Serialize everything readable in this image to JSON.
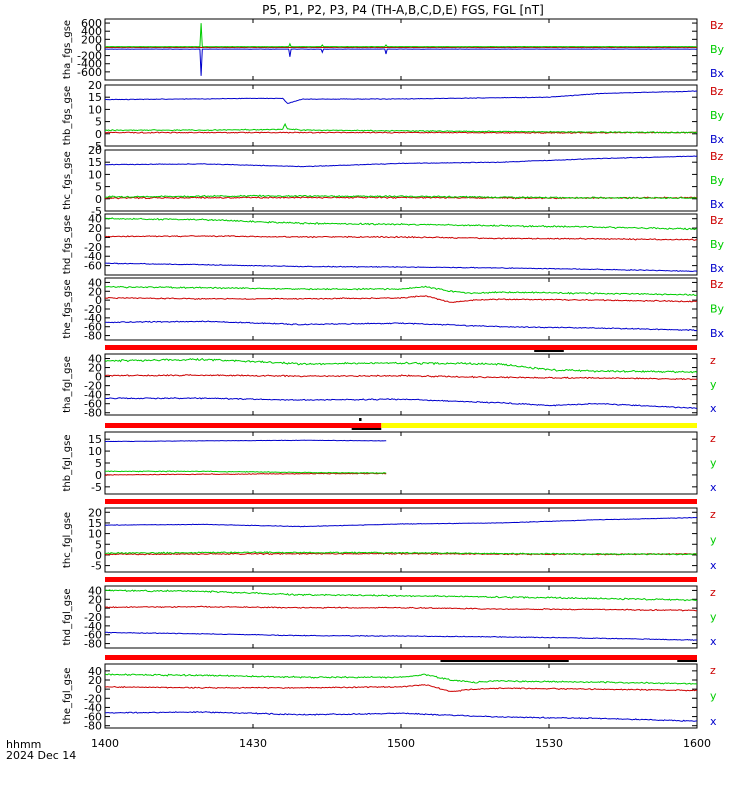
{
  "title": "P5, P1, P2, P3, P4 (TH-A,B,C,D,E) FGS, FGL [nT]",
  "time_axis": {
    "unit_label": "hhmm",
    "date_label": "2024 Dec 14",
    "ticks": [
      "1400",
      "1430",
      "1500",
      "1530",
      "1600"
    ],
    "range_minutes": [
      0,
      120
    ]
  },
  "colors": {
    "x": "#0000cc",
    "y": "#00cc00",
    "z": "#cc0000",
    "bar_red": "#ff0000",
    "bar_yellow": "#ffff00",
    "bar_black": "#000000"
  },
  "chart_data": [
    {
      "type": "line",
      "ylabel": "tha_fgs_gse",
      "ylim": [
        -800,
        700
      ],
      "ytick_labels": [
        "600",
        "400",
        "200",
        "0",
        "-200",
        "-400",
        "-600"
      ],
      "ytick_values": [
        600,
        400,
        200,
        0,
        -200,
        -400,
        -600
      ],
      "legend": [
        "Bz",
        "By",
        "Bx"
      ],
      "series": [
        {
          "name": "Bz",
          "color": "z",
          "x": [
            0,
            30,
            60,
            90,
            120
          ],
          "values": [
            0,
            0,
            0,
            0,
            0
          ],
          "noise": 3,
          "seed": 11
        },
        {
          "name": "By",
          "color": "y",
          "x": [
            0,
            30,
            60,
            90,
            120
          ],
          "values": [
            20,
            20,
            20,
            20,
            20
          ],
          "noise": 3,
          "seed": 12,
          "spikes": [
            [
              19.5,
              600
            ],
            [
              37.5,
              90
            ],
            [
              44,
              60
            ],
            [
              57,
              60
            ]
          ]
        },
        {
          "name": "Bx",
          "color": "x",
          "x": [
            0,
            30,
            60,
            90,
            120
          ],
          "values": [
            -40,
            -40,
            -40,
            -40,
            -40
          ],
          "noise": 3,
          "seed": 13,
          "spikes": [
            [
              19.5,
              -700
            ],
            [
              37.5,
              -230
            ],
            [
              44,
              -120
            ],
            [
              57,
              -160
            ]
          ]
        }
      ]
    },
    {
      "type": "line",
      "ylabel": "thb_fgs_gse",
      "ylim": [
        -5,
        20
      ],
      "ytick_labels": [
        "20",
        "15",
        "10",
        "5",
        "0",
        "-5"
      ],
      "ytick_values": [
        20,
        15,
        10,
        5,
        0,
        -5
      ],
      "legend": [
        "Bz",
        "By",
        "Bx"
      ],
      "series": [
        {
          "name": "Bz",
          "color": "z",
          "x": [
            0,
            30,
            60,
            90,
            120
          ],
          "values": [
            0.5,
            0.5,
            0.5,
            0.4,
            0.5
          ],
          "noise": 0.25,
          "seed": 21
        },
        {
          "name": "By",
          "color": "y",
          "x": [
            0,
            20,
            36,
            36.5,
            37,
            40,
            60,
            90,
            120
          ],
          "values": [
            1.5,
            1.5,
            1.8,
            4,
            2,
            1.5,
            1.2,
            0.8,
            0.5
          ],
          "noise": 0.25,
          "seed": 22
        },
        {
          "name": "Bx",
          "color": "x",
          "x": [
            0,
            30,
            36,
            37,
            40,
            60,
            90,
            100,
            120
          ],
          "values": [
            14,
            14.5,
            14.5,
            12.5,
            14.2,
            14.3,
            15,
            16.5,
            17.5
          ],
          "noise": 0.15,
          "seed": 23
        }
      ]
    },
    {
      "type": "line",
      "ylabel": "thc_fgs_gse",
      "ylim": [
        -5,
        20
      ],
      "ytick_labels": [
        "20",
        "15",
        "10",
        "5",
        "0",
        "-5"
      ],
      "ytick_values": [
        20,
        15,
        10,
        5,
        0,
        -5
      ],
      "legend": [
        "Bz",
        "By",
        "Bx"
      ],
      "series": [
        {
          "name": "Bz",
          "color": "z",
          "x": [
            0,
            30,
            60,
            90,
            120
          ],
          "values": [
            0.3,
            0.5,
            0.5,
            0.3,
            0.5
          ],
          "noise": 0.35,
          "seed": 31
        },
        {
          "name": "By",
          "color": "y",
          "x": [
            0,
            30,
            60,
            90,
            120
          ],
          "values": [
            0.8,
            1.2,
            1.0,
            0.5,
            0.3
          ],
          "noise": 0.35,
          "seed": 32
        },
        {
          "name": "Bx",
          "color": "x",
          "x": [
            0,
            20,
            40,
            60,
            80,
            100,
            120
          ],
          "values": [
            14,
            14.3,
            13.2,
            14.5,
            15,
            16.5,
            17.5
          ],
          "noise": 0.15,
          "seed": 33
        }
      ]
    },
    {
      "type": "line",
      "ylabel": "thd_fgs_gse",
      "ylim": [
        -80,
        50
      ],
      "ytick_labels": [
        "40",
        "20",
        "0",
        "-20",
        "-40",
        "-60"
      ],
      "ytick_values": [
        40,
        20,
        0,
        -20,
        -40,
        -60
      ],
      "legend": [
        "Bz",
        "By",
        "Bx"
      ],
      "series": [
        {
          "name": "Bz",
          "color": "z",
          "x": [
            0,
            20,
            40,
            60,
            80,
            100,
            120
          ],
          "values": [
            2,
            3,
            1,
            1,
            -2,
            -3,
            -5
          ],
          "noise": 1.5,
          "seed": 41
        },
        {
          "name": "By",
          "color": "y",
          "x": [
            0,
            20,
            40,
            60,
            80,
            100,
            120
          ],
          "values": [
            40,
            38,
            30,
            28,
            25,
            22,
            18
          ],
          "noise": 2,
          "seed": 42
        },
        {
          "name": "Bx",
          "color": "x",
          "x": [
            0,
            20,
            40,
            60,
            80,
            100,
            120
          ],
          "values": [
            -55,
            -58,
            -62,
            -63,
            -65,
            -68,
            -72
          ],
          "noise": 1,
          "seed": 43
        }
      ]
    },
    {
      "type": "line",
      "ylabel": "the_fgs_gse",
      "ylim": [
        -90,
        50
      ],
      "ytick_labels": [
        "40",
        "20",
        "0",
        "-20",
        "-40",
        "-60",
        "-80"
      ],
      "ytick_values": [
        40,
        20,
        0,
        -20,
        -40,
        -60,
        -80
      ],
      "legend": [
        "Bz",
        "By",
        "Bx"
      ],
      "series": [
        {
          "name": "Bz",
          "color": "z",
          "x": [
            0,
            20,
            40,
            60,
            65,
            70,
            75,
            80,
            100,
            120
          ],
          "values": [
            5,
            3,
            3,
            5,
            10,
            -5,
            0,
            2,
            0,
            -3
          ],
          "noise": 1.5,
          "seed": 51
        },
        {
          "name": "By",
          "color": "y",
          "x": [
            0,
            20,
            40,
            60,
            65,
            70,
            75,
            80,
            100,
            120
          ],
          "values": [
            30,
            28,
            25,
            25,
            30,
            20,
            15,
            18,
            15,
            12
          ],
          "noise": 2,
          "seed": 52
        },
        {
          "name": "Bx",
          "color": "x",
          "x": [
            0,
            20,
            40,
            60,
            80,
            100,
            120
          ],
          "values": [
            -50,
            -48,
            -55,
            -52,
            -60,
            -63,
            -68
          ],
          "noise": 1.5,
          "seed": 53
        }
      ]
    },
    {
      "type": "line",
      "ylabel": "tha_fgl_gse",
      "ylim": [
        -85,
        50
      ],
      "ytick_labels": [
        "40",
        "20",
        "0",
        "-20",
        "-40",
        "-60",
        "-80"
      ],
      "ytick_values": [
        40,
        20,
        0,
        -20,
        -40,
        -60,
        -80
      ],
      "legend": [
        "z",
        "y",
        "x"
      ],
      "bars": [
        {
          "color": "bar_red",
          "start": 0,
          "end": 120
        },
        {
          "color": "bar_black",
          "start": 87,
          "end": 93,
          "row": "below"
        }
      ],
      "series": [
        {
          "name": "z",
          "color": "z",
          "x": [
            0,
            20,
            40,
            60,
            80,
            100,
            120
          ],
          "values": [
            2,
            3,
            1,
            2,
            -2,
            -3,
            -6
          ],
          "noise": 1.8,
          "seed": 61
        },
        {
          "name": "y",
          "color": "y",
          "x": [
            0,
            20,
            40,
            60,
            80,
            90,
            100,
            120
          ],
          "values": [
            35,
            38,
            28,
            30,
            28,
            15,
            12,
            10
          ],
          "noise": 2.5,
          "seed": 62
        },
        {
          "name": "x",
          "color": "x",
          "x": [
            0,
            20,
            40,
            60,
            80,
            90,
            100,
            120
          ],
          "values": [
            -48,
            -48,
            -52,
            -50,
            -58,
            -64,
            -60,
            -70
          ],
          "noise": 1.5,
          "seed": 63
        }
      ]
    },
    {
      "type": "line",
      "ylabel": "thb_fgl_gse",
      "ylim": [
        -8,
        18
      ],
      "ytick_labels": [
        "15",
        "10",
        "5",
        "0",
        "-5"
      ],
      "ytick_values": [
        15,
        10,
        5,
        0,
        -5
      ],
      "legend": [
        "z",
        "y",
        "x"
      ],
      "bars": [
        {
          "color": "bar_red",
          "start": 0,
          "end": 56
        },
        {
          "color": "bar_yellow",
          "start": 56,
          "end": 120
        },
        {
          "color": "bar_black",
          "start": 51.5,
          "end": 52,
          "row": "above"
        },
        {
          "color": "bar_black",
          "start": 50,
          "end": 56,
          "row": "below"
        }
      ],
      "series": [
        {
          "name": "z",
          "color": "z",
          "x": [
            0,
            20,
            40,
            57
          ],
          "values": [
            0,
            0.3,
            0.5,
            0.6
          ],
          "noise": 0.2,
          "seed": 71
        },
        {
          "name": "y",
          "color": "y",
          "x": [
            0,
            20,
            40,
            57
          ],
          "values": [
            1.5,
            1.5,
            1.0,
            0.8
          ],
          "noise": 0.2,
          "seed": 72
        },
        {
          "name": "x",
          "color": "x",
          "x": [
            0,
            20,
            40,
            57
          ],
          "values": [
            14,
            14.3,
            14.5,
            14.3
          ],
          "noise": 0.1,
          "seed": 73
        }
      ]
    },
    {
      "type": "line",
      "ylabel": "thc_fgl_gse",
      "ylim": [
        -8,
        22
      ],
      "ytick_labels": [
        "20",
        "15",
        "10",
        "5",
        "0",
        "-5"
      ],
      "ytick_values": [
        20,
        15,
        10,
        5,
        0,
        -5
      ],
      "legend": [
        "z",
        "y",
        "x"
      ],
      "bars": [
        {
          "color": "bar_red",
          "start": 0,
          "end": 120
        }
      ],
      "series": [
        {
          "name": "z",
          "color": "z",
          "x": [
            0,
            30,
            60,
            90,
            120
          ],
          "values": [
            0.3,
            0.5,
            0.6,
            0.3,
            0.4
          ],
          "noise": 0.35,
          "seed": 81
        },
        {
          "name": "y",
          "color": "y",
          "x": [
            0,
            30,
            60,
            90,
            120
          ],
          "values": [
            0.8,
            1.2,
            1.0,
            0.5,
            0.3
          ],
          "noise": 0.35,
          "seed": 82
        },
        {
          "name": "x",
          "color": "x",
          "x": [
            0,
            20,
            40,
            60,
            80,
            100,
            120
          ],
          "values": [
            14,
            14.3,
            13.3,
            14.5,
            15,
            16.5,
            17.5
          ],
          "noise": 0.15,
          "seed": 83
        }
      ]
    },
    {
      "type": "line",
      "ylabel": "thd_fgl_gse",
      "ylim": [
        -90,
        50
      ],
      "ytick_labels": [
        "40",
        "20",
        "0",
        "-20",
        "-40",
        "-60",
        "-80"
      ],
      "ytick_values": [
        40,
        20,
        0,
        -20,
        -40,
        -60,
        -80
      ],
      "legend": [
        "z",
        "y",
        "x"
      ],
      "bars": [
        {
          "color": "bar_red",
          "start": 0,
          "end": 120
        }
      ],
      "series": [
        {
          "name": "z",
          "color": "z",
          "x": [
            0,
            20,
            40,
            60,
            80,
            100,
            120
          ],
          "values": [
            2,
            3,
            1,
            1,
            -2,
            -3,
            -5
          ],
          "noise": 1.5,
          "seed": 91
        },
        {
          "name": "y",
          "color": "y",
          "x": [
            0,
            20,
            40,
            60,
            80,
            100,
            120
          ],
          "values": [
            40,
            38,
            30,
            28,
            25,
            22,
            18
          ],
          "noise": 2,
          "seed": 92
        },
        {
          "name": "x",
          "color": "x",
          "x": [
            0,
            20,
            40,
            60,
            80,
            100,
            120
          ],
          "values": [
            -55,
            -58,
            -62,
            -63,
            -65,
            -68,
            -72
          ],
          "noise": 1,
          "seed": 93
        }
      ]
    },
    {
      "type": "line",
      "ylabel": "the_fgl_gse",
      "ylim": [
        -85,
        55
      ],
      "ytick_labels": [
        "40",
        "20",
        "0",
        "-20",
        "-40",
        "-60",
        "-80"
      ],
      "ytick_values": [
        40,
        20,
        0,
        -20,
        -40,
        -60,
        -80
      ],
      "legend": [
        "z",
        "y",
        "x"
      ],
      "bars": [
        {
          "color": "bar_red",
          "start": 0,
          "end": 120
        },
        {
          "color": "bar_black",
          "start": 68,
          "end": 94,
          "row": "below"
        },
        {
          "color": "bar_black",
          "start": 116,
          "end": 120,
          "row": "below"
        }
      ],
      "series": [
        {
          "name": "z",
          "color": "z",
          "x": [
            0,
            20,
            40,
            60,
            65,
            70,
            75,
            80,
            100,
            120
          ],
          "values": [
            5,
            3,
            3,
            5,
            10,
            -5,
            0,
            2,
            0,
            -3
          ],
          "noise": 1.5,
          "seed": 101
        },
        {
          "name": "y",
          "color": "y",
          "x": [
            0,
            20,
            40,
            60,
            65,
            70,
            75,
            80,
            100,
            120
          ],
          "values": [
            32,
            30,
            26,
            26,
            32,
            20,
            15,
            18,
            15,
            12
          ],
          "noise": 2,
          "seed": 102
        },
        {
          "name": "x",
          "color": "x",
          "x": [
            0,
            20,
            40,
            60,
            80,
            100,
            120
          ],
          "values": [
            -52,
            -50,
            -56,
            -53,
            -61,
            -64,
            -70
          ],
          "noise": 1.5,
          "seed": 103
        }
      ]
    }
  ]
}
